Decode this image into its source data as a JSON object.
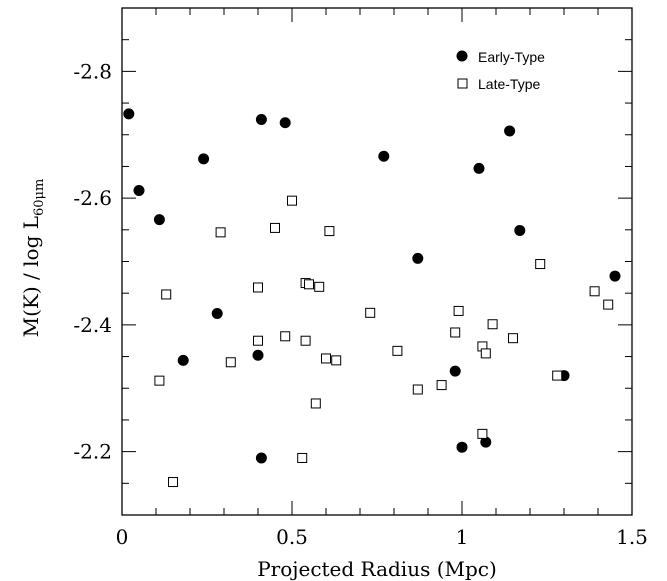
{
  "chart_data": {
    "type": "scatter",
    "xlabel": "Projected Radius (Mpc)",
    "ylabel": {
      "main": "M(K)  /  log L",
      "subscript": "60μm"
    },
    "xlim": [
      0,
      1.5
    ],
    "ylim": [
      -2.1,
      -2.9
    ],
    "y_inverted": true,
    "xticks": [
      0,
      0.5,
      1,
      1.5
    ],
    "xtick_labels": [
      "0",
      "0.5",
      "1",
      "1.5"
    ],
    "yticks": [
      -2.2,
      -2.4,
      -2.6,
      -2.8
    ],
    "ytick_labels": [
      "-2.2",
      "-2.4",
      "-2.6",
      "-2.8"
    ],
    "legend_position": "top-right",
    "series": [
      {
        "name": "Early-Type",
        "marker": "filled-circle",
        "color": "#000000",
        "points": [
          [
            0.02,
            -2.733
          ],
          [
            0.05,
            -2.612
          ],
          [
            0.11,
            -2.566
          ],
          [
            0.18,
            -2.344
          ],
          [
            0.24,
            -2.662
          ],
          [
            0.28,
            -2.418
          ],
          [
            0.4,
            -2.352
          ],
          [
            0.41,
            -2.724
          ],
          [
            0.41,
            -2.19
          ],
          [
            0.48,
            -2.719
          ],
          [
            0.77,
            -2.666
          ],
          [
            0.87,
            -2.505
          ],
          [
            0.98,
            -2.327
          ],
          [
            1.0,
            -2.207
          ],
          [
            1.05,
            -2.647
          ],
          [
            1.07,
            -2.215
          ],
          [
            1.14,
            -2.706
          ],
          [
            1.17,
            -2.549
          ],
          [
            1.3,
            -2.32
          ],
          [
            1.45,
            -2.477
          ]
        ]
      },
      {
        "name": "Late-Type",
        "marker": "open-square",
        "color": "#000000",
        "points": [
          [
            0.11,
            -2.312
          ],
          [
            0.13,
            -2.448
          ],
          [
            0.15,
            -2.152
          ],
          [
            0.29,
            -2.546
          ],
          [
            0.32,
            -2.341
          ],
          [
            0.4,
            -2.459
          ],
          [
            0.4,
            -2.375
          ],
          [
            0.45,
            -2.553
          ],
          [
            0.48,
            -2.382
          ],
          [
            0.5,
            -2.596
          ],
          [
            0.53,
            -2.19
          ],
          [
            0.54,
            -2.466
          ],
          [
            0.54,
            -2.375
          ],
          [
            0.55,
            -2.464
          ],
          [
            0.57,
            -2.276
          ],
          [
            0.58,
            -2.46
          ],
          [
            0.6,
            -2.347
          ],
          [
            0.61,
            -2.548
          ],
          [
            0.63,
            -2.344
          ],
          [
            0.73,
            -2.419
          ],
          [
            0.81,
            -2.359
          ],
          [
            0.87,
            -2.298
          ],
          [
            0.94,
            -2.305
          ],
          [
            0.98,
            -2.388
          ],
          [
            0.99,
            -2.422
          ],
          [
            1.06,
            -2.366
          ],
          [
            1.06,
            -2.228
          ],
          [
            1.07,
            -2.355
          ],
          [
            1.09,
            -2.401
          ],
          [
            1.15,
            -2.379
          ],
          [
            1.23,
            -2.496
          ],
          [
            1.28,
            -2.32
          ],
          [
            1.39,
            -2.453
          ],
          [
            1.43,
            -2.432
          ]
        ]
      }
    ]
  }
}
